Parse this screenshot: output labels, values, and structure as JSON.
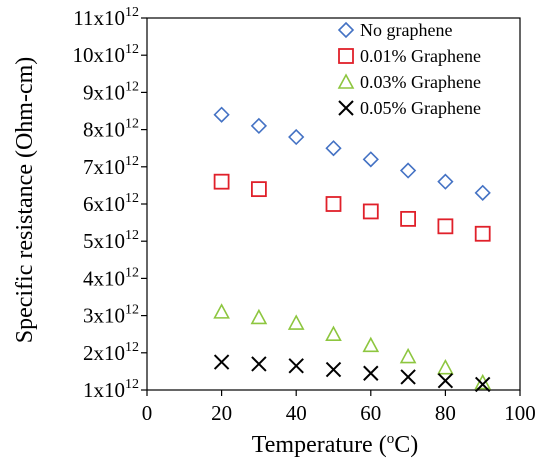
{
  "chart_data": {
    "type": "scatter",
    "title": "",
    "xlabel": "Temperature (",
    "xlabel_sup": "o",
    "xlabel_end": "C)",
    "ylabel": "Specific resistance (Ohm-cm)",
    "xlim": [
      0,
      100
    ],
    "ylim": [
      1,
      11
    ],
    "x_ticks": [
      0,
      20,
      40,
      60,
      80,
      100
    ],
    "y_ticks": [
      {
        "v": 1,
        "mant": "1x10",
        "exp": "12"
      },
      {
        "v": 2,
        "mant": "2x10",
        "exp": "12"
      },
      {
        "v": 3,
        "mant": "3x10",
        "exp": "12"
      },
      {
        "v": 4,
        "mant": "4x10",
        "exp": "12"
      },
      {
        "v": 5,
        "mant": "5x10",
        "exp": "12"
      },
      {
        "v": 6,
        "mant": "6x10",
        "exp": "12"
      },
      {
        "v": 7,
        "mant": "7x10",
        "exp": "12"
      },
      {
        "v": 8,
        "mant": "8x10",
        "exp": "12"
      },
      {
        "v": 9,
        "mant": "9x10",
        "exp": "12"
      },
      {
        "v": 10,
        "mant": "10x10",
        "exp": "12"
      },
      {
        "v": 11,
        "mant": "11x10",
        "exp": "12"
      }
    ],
    "y_unit_multiplier": 1000000000000.0,
    "grid": false,
    "legend_position": "top-right",
    "series": [
      {
        "name": "No graphene",
        "marker": "diamond",
        "color": "#4472C4",
        "x": [
          20,
          30,
          40,
          50,
          60,
          70,
          80,
          90
        ],
        "y": [
          8.4,
          8.1,
          7.8,
          7.5,
          7.2,
          6.9,
          6.6,
          6.3
        ]
      },
      {
        "name": "0.01% Graphene",
        "marker": "square",
        "color": "#E0202A",
        "x": [
          20,
          30,
          50,
          60,
          70,
          80,
          90
        ],
        "y": [
          6.6,
          6.4,
          6.0,
          5.8,
          5.6,
          5.4,
          5.2
        ]
      },
      {
        "name": "0.03% Graphene",
        "marker": "triangle",
        "color": "#8DC63F",
        "x": [
          20,
          30,
          40,
          50,
          60,
          70,
          80,
          90
        ],
        "y": [
          3.1,
          2.95,
          2.8,
          2.5,
          2.2,
          1.9,
          1.6,
          1.2
        ]
      },
      {
        "name": "0.05% Graphene",
        "marker": "cross",
        "color": "#000000",
        "x": [
          20,
          30,
          40,
          50,
          60,
          70,
          80,
          90
        ],
        "y": [
          1.75,
          1.7,
          1.65,
          1.55,
          1.45,
          1.35,
          1.25,
          1.15
        ]
      }
    ]
  }
}
